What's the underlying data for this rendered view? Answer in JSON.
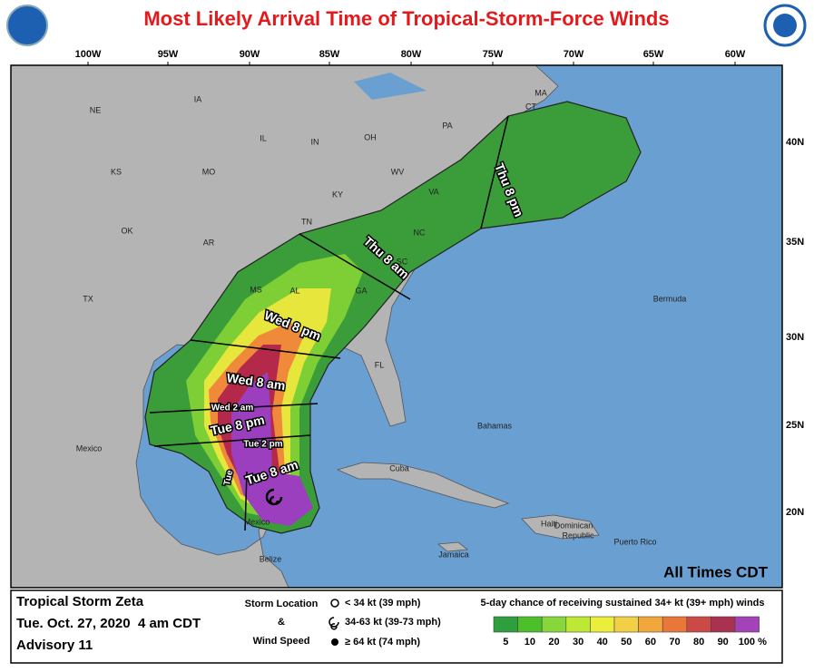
{
  "header": {
    "title": "Most Likely Arrival Time of Tropical-Storm-Force Winds"
  },
  "map": {
    "lon_labels": [
      "100W",
      "95W",
      "90W",
      "85W",
      "80W",
      "75W",
      "70W",
      "65W",
      "60W"
    ],
    "lat_labels": [
      "40N",
      "35N",
      "30N",
      "25N",
      "20N"
    ],
    "places": [
      "NE",
      "IA",
      "IL",
      "IN",
      "OH",
      "PA",
      "MA",
      "CT",
      "KS",
      "MO",
      "KY",
      "WV",
      "VA",
      "OK",
      "AR",
      "TN",
      "NC",
      "SC",
      "TX",
      "MS",
      "AL",
      "GA",
      "FL",
      "Mexico",
      "Bahamas",
      "Cuba",
      "Haiti",
      "Dominican",
      "Republic",
      "Puerto Rico",
      "Jamaica",
      "Belize",
      "Bermuda",
      "Mexico"
    ],
    "arrival_labels": [
      "Thu 8 pm",
      "Thu 8 am",
      "Wed 8 pm",
      "Wed 8 am",
      "Wed 2 am",
      "Tue 8 pm",
      "Tue 2 pm",
      "Tue 8 am",
      "Tue"
    ],
    "note": "All Times CDT"
  },
  "footer": {
    "storm": "Tropical Storm Zeta",
    "date": "Tue. Oct. 27, 2020  4 am CDT",
    "advisory": "Advisory 11",
    "storm_location": "Storm Location",
    "amp": "&",
    "wind_speed": "Wind Speed",
    "symbols": [
      "< 34 kt (39 mph)",
      "34-63 kt (39-73 mph)",
      "≥ 64 kt (74 mph)"
    ],
    "scale_title": "5-day chance of receiving sustained 34+ kt (39+ mph) winds",
    "scale_labels": [
      "5",
      "10",
      "20",
      "30",
      "40",
      "50",
      "60",
      "70",
      "80",
      "90",
      "100 %"
    ]
  }
}
